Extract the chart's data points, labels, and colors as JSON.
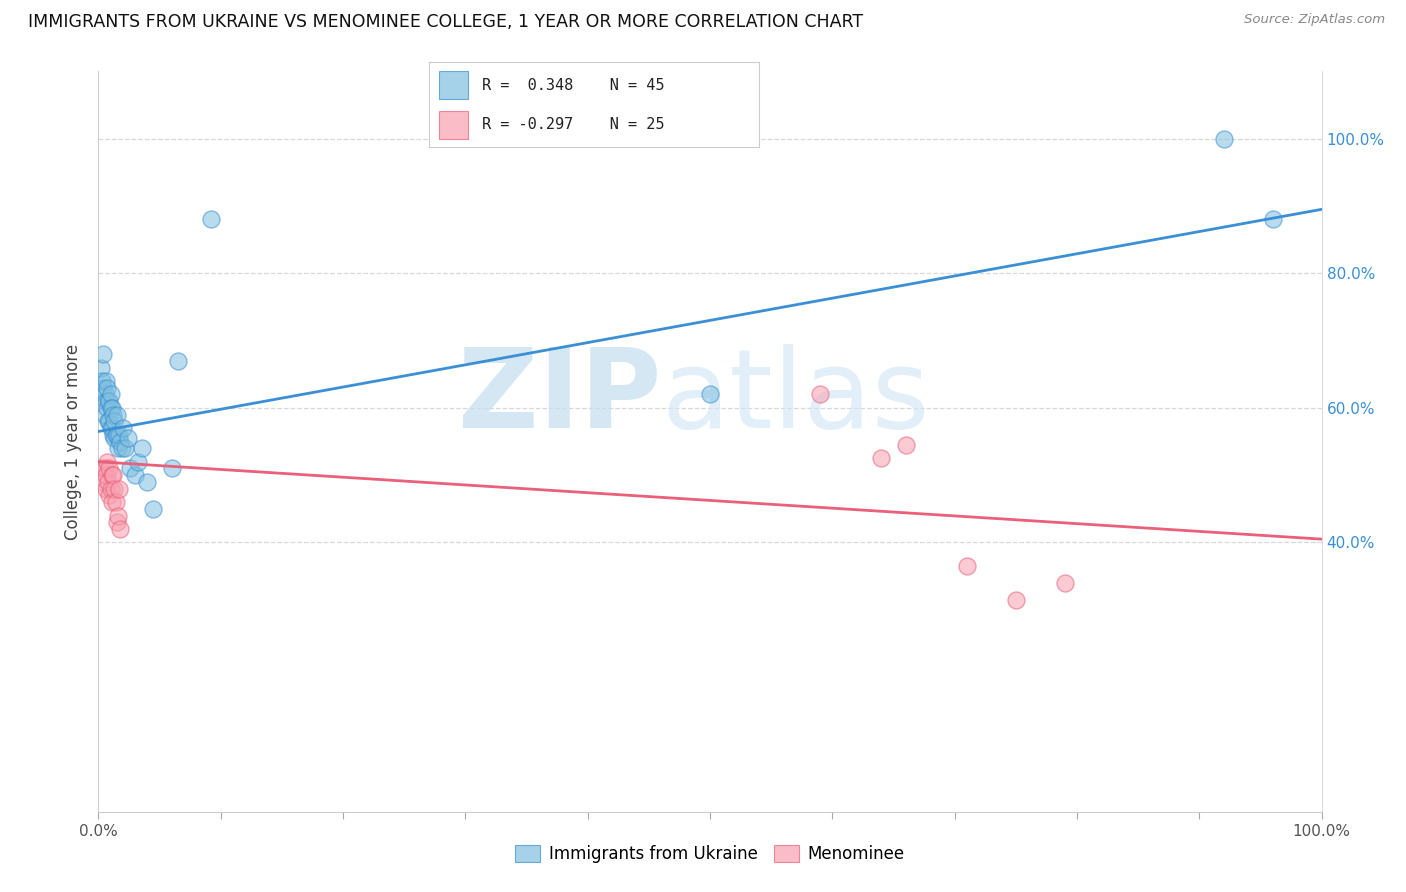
{
  "title": "IMMIGRANTS FROM UKRAINE VS MENOMINEE COLLEGE, 1 YEAR OR MORE CORRELATION CHART",
  "source": "Source: ZipAtlas.com",
  "ylabel": "College, 1 year or more",
  "legend_blue_r": "R =  0.348",
  "legend_blue_n": "N = 45",
  "legend_pink_r": "R = -0.297",
  "legend_pink_n": "N = 25",
  "legend_blue_label": "Immigrants from Ukraine",
  "legend_pink_label": "Menominee",
  "blue_scatter_x": [
    0.002,
    0.003,
    0.004,
    0.004,
    0.005,
    0.005,
    0.006,
    0.006,
    0.007,
    0.007,
    0.008,
    0.008,
    0.009,
    0.009,
    0.01,
    0.01,
    0.01,
    0.011,
    0.011,
    0.012,
    0.012,
    0.013,
    0.013,
    0.014,
    0.015,
    0.015,
    0.016,
    0.017,
    0.018,
    0.019,
    0.02,
    0.022,
    0.024,
    0.026,
    0.03,
    0.032,
    0.036,
    0.04,
    0.045,
    0.06,
    0.065,
    0.092,
    0.5,
    0.92,
    0.96
  ],
  "blue_scatter_y": [
    0.66,
    0.64,
    0.68,
    0.63,
    0.62,
    0.59,
    0.64,
    0.61,
    0.63,
    0.6,
    0.61,
    0.58,
    0.61,
    0.58,
    0.62,
    0.6,
    0.57,
    0.6,
    0.57,
    0.59,
    0.56,
    0.58,
    0.555,
    0.56,
    0.59,
    0.56,
    0.54,
    0.56,
    0.55,
    0.54,
    0.57,
    0.54,
    0.555,
    0.51,
    0.5,
    0.52,
    0.54,
    0.49,
    0.45,
    0.51,
    0.67,
    0.88,
    0.62,
    1.0,
    0.88
  ],
  "pink_scatter_x": [
    0.003,
    0.004,
    0.005,
    0.006,
    0.006,
    0.007,
    0.008,
    0.009,
    0.009,
    0.01,
    0.011,
    0.011,
    0.012,
    0.013,
    0.014,
    0.015,
    0.016,
    0.017,
    0.018,
    0.59,
    0.64,
    0.66,
    0.71,
    0.75,
    0.79
  ],
  "pink_scatter_y": [
    0.51,
    0.49,
    0.51,
    0.48,
    0.5,
    0.52,
    0.49,
    0.47,
    0.51,
    0.48,
    0.5,
    0.46,
    0.5,
    0.48,
    0.46,
    0.43,
    0.44,
    0.48,
    0.42,
    0.62,
    0.525,
    0.545,
    0.365,
    0.315,
    0.34
  ],
  "blue_line_start_x": 0.0,
  "blue_line_start_y": 0.565,
  "blue_line_end_x": 1.0,
  "blue_line_end_y": 0.895,
  "pink_line_start_x": 0.0,
  "pink_line_start_y": 0.52,
  "pink_line_end_x": 1.0,
  "pink_line_end_y": 0.405,
  "blue_color": "#7fbfdf",
  "pink_color": "#f8a0b0",
  "blue_line_color": "#3b8fd4",
  "pink_line_color": "#e8607a",
  "grid_color": "#d8d8d8",
  "background_color": "#ffffff",
  "xlim": [
    0.0,
    1.0
  ],
  "ylim": [
    0.0,
    1.1
  ],
  "ytick_vals": [
    0.4,
    0.6,
    0.8,
    1.0
  ],
  "ytick_labels": [
    "40.0%",
    "60.0%",
    "80.0%",
    "100.0%"
  ]
}
